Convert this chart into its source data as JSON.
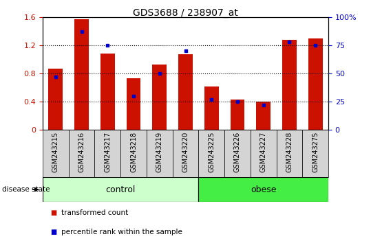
{
  "title": "GDS3688 / 238907_at",
  "samples": [
    "GSM243215",
    "GSM243216",
    "GSM243217",
    "GSM243218",
    "GSM243219",
    "GSM243220",
    "GSM243225",
    "GSM243226",
    "GSM243227",
    "GSM243228",
    "GSM243275"
  ],
  "transformed_count": [
    0.87,
    1.57,
    1.08,
    0.73,
    0.93,
    1.07,
    0.62,
    0.43,
    0.4,
    1.28,
    1.3
  ],
  "percentile_rank": [
    47,
    87,
    75,
    30,
    50,
    70,
    27,
    25,
    22,
    78,
    75
  ],
  "ctrl_count": 6,
  "obese_count": 5,
  "bar_color": "#cc1100",
  "marker_color": "#0000cc",
  "left_ylim": [
    0,
    1.6
  ],
  "right_ylim": [
    0,
    100
  ],
  "left_yticks": [
    0,
    0.4,
    0.8,
    1.2,
    1.6
  ],
  "right_yticks": [
    0,
    25,
    50,
    75,
    100
  ],
  "right_yticklabels": [
    "0",
    "25",
    "50",
    "75",
    "100%"
  ],
  "bar_width": 0.55,
  "control_color": "#ccffcc",
  "obese_color": "#44ee44",
  "control_label": "control",
  "obese_label": "obese",
  "disease_state_label": "disease state",
  "legend_red": "transformed count",
  "legend_blue": "percentile rank within the sample",
  "tick_label_color_left": "#cc1100",
  "tick_label_color_right": "#0000cc",
  "bar_bg": "#d4d4d4",
  "xlabel_bg": "#d4d4d4"
}
